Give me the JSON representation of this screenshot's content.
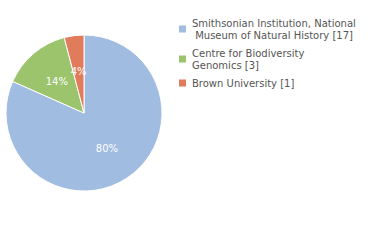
{
  "chart_data": {
    "type": "pie",
    "categories": [
      "Smithsonian Institution, National Museum of Natural History [17]",
      "Centre for Biodiversity Genomics [3]",
      "Brown University [1]"
    ],
    "values": [
      80,
      14,
      4
    ],
    "value_labels": [
      "80%",
      "14%",
      "4%"
    ],
    "colors": [
      "#a0bce0",
      "#9bc46d",
      "#e07b5b"
    ],
    "data_labels": true,
    "legend": "right"
  }
}
